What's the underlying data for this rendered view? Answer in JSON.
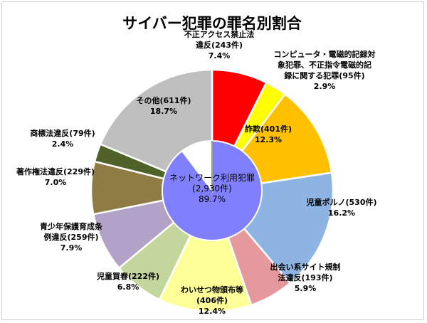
{
  "chart_data": {
    "type": "pie",
    "title": "サイバー犯罪の罪名別割合",
    "outer_slices": [
      {
        "name": "不正アクセス禁止法違反",
        "lines": [
          "不正アクセス禁止法",
          "違反(243件)",
          "7.4%"
        ],
        "count": 243,
        "percent": 7.4,
        "color": "#ff0000"
      },
      {
        "name": "コンピュータ・電磁的記録対象犯罪、不正指令電磁的記録に関する犯罪",
        "lines": [
          "コンピュータ・電磁的記録対",
          "象犯罪、不正指令電磁的記",
          "録に関する犯罪(95件)",
          "2.9%"
        ],
        "count": 95,
        "percent": 2.9,
        "color": "#ffff00"
      },
      {
        "name": "詐欺",
        "lines": [
          "詐欺(401件)",
          "12.3%"
        ],
        "count": 401,
        "percent": 12.3,
        "color": "#ffc000"
      },
      {
        "name": "児童ポルノ",
        "lines": [
          "児童ポルノ(530件)",
          "16.2%"
        ],
        "count": 530,
        "percent": 16.2,
        "color": "#8eb4e3"
      },
      {
        "name": "出会い系サイト規制法違反",
        "lines": [
          "出会い系サイト規制",
          "法違反(193件)",
          "5.9%"
        ],
        "count": 193,
        "percent": 5.9,
        "color": "#e6999c"
      },
      {
        "name": "わいせつ物頒布等",
        "lines": [
          "わいせつ物頒布等",
          "(406件)",
          "12.4%"
        ],
        "count": 406,
        "percent": 12.4,
        "color": "#ffff99"
      },
      {
        "name": "児童買春",
        "lines": [
          "児童買春(222件)",
          "6.8%"
        ],
        "count": 222,
        "percent": 6.8,
        "color": "#c3d69b"
      },
      {
        "name": "青少年保護育成条例違反",
        "lines": [
          "青少年保護育成条",
          "例違反(259件)",
          "7.9%"
        ],
        "count": 259,
        "percent": 7.9,
        "color": "#b3a2c7"
      },
      {
        "name": "著作権法違反",
        "lines": [
          "著作権法違反(229件)",
          "7.0%"
        ],
        "count": 229,
        "percent": 7.0,
        "color": "#8f7b44"
      },
      {
        "name": "商標法違反",
        "lines": [
          "商標法違反(79件)",
          "2.4%"
        ],
        "count": 79,
        "percent": 2.4,
        "color": "#4f6228"
      },
      {
        "name": "その他",
        "lines": [
          "その他(611件)",
          "18.7%"
        ],
        "count": 611,
        "percent": 18.7,
        "color": "#bfbfbf"
      }
    ],
    "inner_slices": [
      {
        "name": "ネットワーク利用犯罪",
        "lines": [
          "ネットワーク利用犯罪",
          "(2,930件)",
          "89.7%"
        ],
        "count": 2930,
        "percent": 89.7,
        "color": "#8080ff"
      },
      {
        "name": "",
        "lines": [],
        "count": null,
        "percent": 10.3,
        "color": "#ffffff"
      }
    ]
  }
}
